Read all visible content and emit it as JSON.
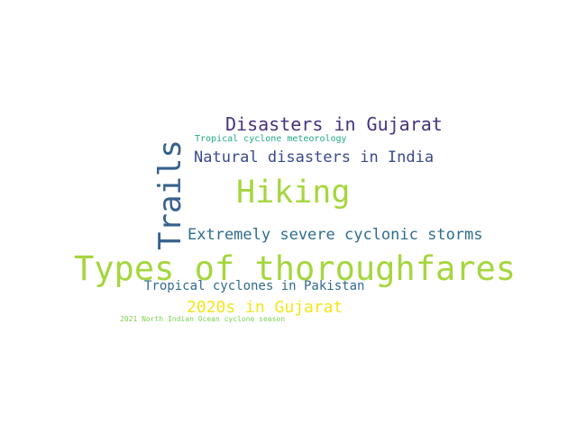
{
  "words": [
    {
      "text": "Types of thoroughfares",
      "color": "#a5d63e"
    },
    {
      "text": "Hiking",
      "color": "#a5d63e"
    },
    {
      "text": "Trails",
      "color": "#35608d"
    },
    {
      "text": "Disasters in Gujarat",
      "color": "#46327e"
    },
    {
      "text": "Natural disasters in India",
      "color": "#3b4a8b"
    },
    {
      "text": "Extremely severe cyclonic storms",
      "color": "#2e6d8e"
    },
    {
      "text": "2020s in Gujarat",
      "color": "#f2e51d"
    },
    {
      "text": "Tropical cyclones in Pakistan",
      "color": "#31698e"
    },
    {
      "text": "Tropical cyclone meteorology",
      "color": "#23a983"
    },
    {
      "text": "2021 North Indian Ocean cyclone season",
      "color": "#7ad151"
    }
  ]
}
